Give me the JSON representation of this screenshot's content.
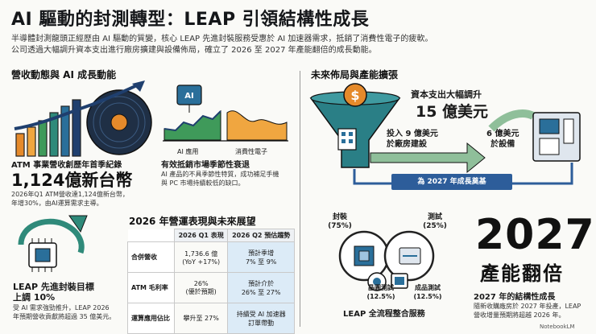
{
  "title": "AI 驅動的封測轉型：LEAP 引領結構性成長",
  "intro": [
    "半導體封測龍頭正經歷由 AI 驅動的質變，核心 LEAP 先進封裝服務受惠於 AI 加速器需求，抵銷了消費性電子的疲軟。",
    "公司透過大幅調升資本支出進行廠房擴建與設備佈局，確立了 2026 至 2027 年產能翻倍的成長動能。"
  ],
  "left_section": {
    "heading": "營收動態與 AI 成長動能",
    "revenue_block": {
      "label": "ATM 事業營收創歷年首季紀錄",
      "value": "1,124億新台幣",
      "desc": [
        "2026年Q1 ATM營收達1,124億新台幣，",
        "年增30%，由AI運算需求主導。"
      ]
    },
    "offset_block": {
      "chip_text": "AI",
      "legend_ai": "AI 應用",
      "legend_consumer": "消費性電子",
      "label": "有效抵銷市場季節性衰退",
      "desc": [
        "AI 產品的不具季節性特質，成功補足手機",
        "與 PC 市場持續較低的缺口。"
      ]
    },
    "leap_block": {
      "label": "LEAP 先進封裝目標",
      "value": "上調 10%",
      "desc": [
        "受 AI 需求強勁推升，LEAP 2026",
        "年預期營收貢獻將超過 35 億美元。"
      ]
    }
  },
  "table_section": {
    "heading": "2026 年營運表現與未來展望",
    "columns": [
      "2026 Q1 表現",
      "2026 Q2 預估趨勢"
    ],
    "rows": [
      {
        "label": "合併營收",
        "q1": [
          "1,736.6 億",
          "(YoY +17%)"
        ],
        "q2": [
          "預計季增",
          "7% 至 9%"
        ]
      },
      {
        "label": "ATM 毛利率",
        "q1": [
          "26%",
          "(優於預期)"
        ],
        "q2": [
          "預計介於",
          "26% 至 27%"
        ]
      },
      {
        "label": "運算應用佔比",
        "q1": [
          "攀升至 27%"
        ],
        "q2": [
          "持續受 AI 加速器",
          "訂單帶動"
        ]
      }
    ]
  },
  "right_section": {
    "heading": "未來佈局與產能擴張",
    "capex_label": "資本支出大幅調升",
    "capex_value": "15 億美元",
    "invest_plant": [
      "投入 9 億美元",
      "於廠房建設"
    ],
    "invest_equipment": [
      "6 億美元",
      "於設備"
    ],
    "foundation": "為 2027 年成長奠基",
    "services": {
      "packaging": [
        "封裝",
        "(75%)"
      ],
      "testing": [
        "測試",
        "(25%)"
      ],
      "wafer_test": [
        "晶圓測試",
        "(12.5%)"
      ],
      "final_test": [
        "成品測試",
        "(12.5%)"
      ],
      "caption": "LEAP 全流程整合服務"
    },
    "year": "2027",
    "capacity": "產能翻倍",
    "growth_label": "2027 年的結構性成長",
    "growth_desc": [
      "隨新收購廠房於 2027 年投產，LEAP",
      "營收增量預期將超越 2026 年。"
    ]
  },
  "brand": "NotebookLM",
  "colors": {
    "navy": "#1f3f6e",
    "green": "#3f9a5a",
    "orange": "#e58a2b",
    "teal": "#2a7f86"
  }
}
